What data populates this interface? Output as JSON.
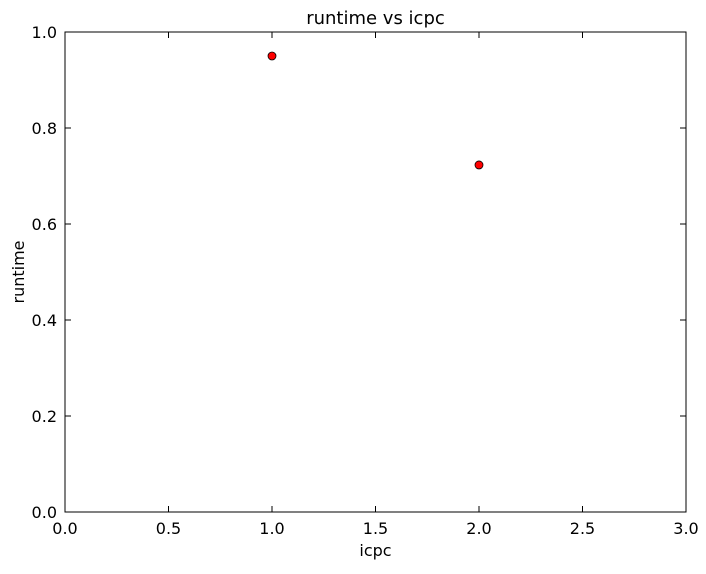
{
  "chart_data": {
    "type": "scatter",
    "title": "runtime vs icpc",
    "xlabel": "icpc",
    "ylabel": "runtime",
    "xlim": [
      0.0,
      3.0
    ],
    "ylim": [
      0.0,
      1.0
    ],
    "xticks": [
      0.0,
      0.5,
      1.0,
      1.5,
      2.0,
      2.5,
      3.0
    ],
    "xtick_labels": [
      "0.0",
      "0.5",
      "1.0",
      "1.5",
      "2.0",
      "2.5",
      "3.0"
    ],
    "yticks": [
      0.0,
      0.2,
      0.4,
      0.6,
      0.8,
      1.0
    ],
    "ytick_labels": [
      "0.0",
      "0.2",
      "0.4",
      "0.6",
      "0.8",
      "1.0"
    ],
    "grid": false,
    "legend": "none",
    "series": [
      {
        "marker": "circle",
        "color": "#ff0000",
        "edge_color": "#000000",
        "x": [
          1.0,
          2.0
        ],
        "y": [
          0.95,
          0.723
        ]
      }
    ]
  }
}
